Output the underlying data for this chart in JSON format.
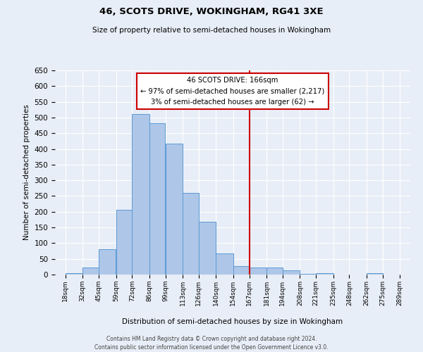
{
  "title": "46, SCOTS DRIVE, WOKINGHAM, RG41 3XE",
  "subtitle": "Size of property relative to semi-detached houses in Wokingham",
  "xlabel": "Distribution of semi-detached houses by size in Wokingham",
  "ylabel": "Number of semi-detached properties",
  "bin_labels": [
    "18sqm",
    "32sqm",
    "45sqm",
    "59sqm",
    "72sqm",
    "86sqm",
    "99sqm",
    "113sqm",
    "126sqm",
    "140sqm",
    "154sqm",
    "167sqm",
    "181sqm",
    "194sqm",
    "208sqm",
    "221sqm",
    "235sqm",
    "248sqm",
    "262sqm",
    "275sqm",
    "289sqm"
  ],
  "bin_edges": [
    18,
    32,
    45,
    59,
    72,
    86,
    99,
    113,
    126,
    140,
    154,
    167,
    181,
    194,
    208,
    221,
    235,
    248,
    262,
    275,
    289
  ],
  "bar_heights": [
    5,
    23,
    80,
    207,
    510,
    481,
    418,
    260,
    168,
    67,
    27,
    22,
    22,
    13,
    3,
    4,
    1,
    0,
    4,
    0
  ],
  "bar_color": "#aec6e8",
  "bar_edge_color": "#5b9bd5",
  "property_line_x": 167,
  "property_label": "46 SCOTS DRIVE: 166sqm",
  "annotation_line1": "← 97% of semi-detached houses are smaller (2,217)",
  "annotation_line2": "3% of semi-detached houses are larger (62) →",
  "annotation_box_color": "#cc0000",
  "ylim": [
    0,
    650
  ],
  "yticks": [
    0,
    50,
    100,
    150,
    200,
    250,
    300,
    350,
    400,
    450,
    500,
    550,
    600,
    650
  ],
  "background_color": "#e8eef7",
  "grid_color": "#ffffff",
  "footer_line1": "Contains HM Land Registry data © Crown copyright and database right 2024.",
  "footer_line2": "Contains public sector information licensed under the Open Government Licence v3.0."
}
